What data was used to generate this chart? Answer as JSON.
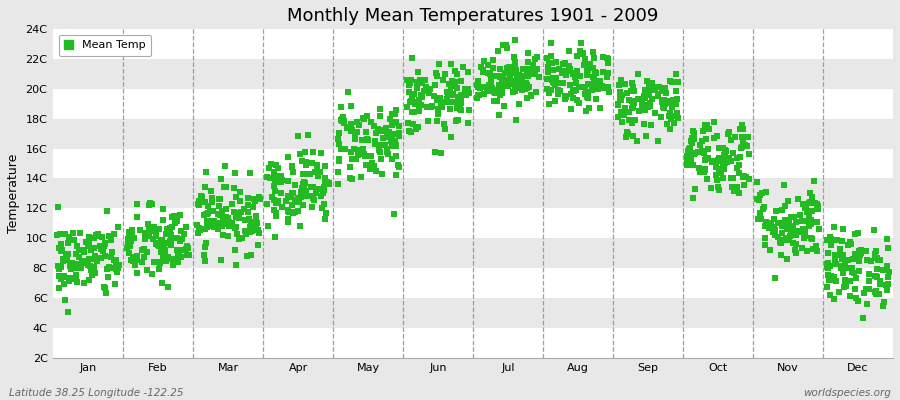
{
  "title": "Monthly Mean Temperatures 1901 - 2009",
  "ylabel": "Temperature",
  "xlabel_labels": [
    "Jan",
    "Feb",
    "Mar",
    "Apr",
    "May",
    "Jun",
    "Jul",
    "Aug",
    "Sep",
    "Oct",
    "Nov",
    "Dec"
  ],
  "ytick_labels": [
    "2C",
    "4C",
    "6C",
    "8C",
    "10C",
    "12C",
    "14C",
    "16C",
    "18C",
    "20C",
    "22C",
    "24C"
  ],
  "ytick_values": [
    2,
    4,
    6,
    8,
    10,
    12,
    14,
    16,
    18,
    20,
    22,
    24
  ],
  "ylim": [
    2,
    24
  ],
  "xlim": [
    0,
    12
  ],
  "legend_label": "Mean Temp",
  "marker_color": "#22bb22",
  "marker": "s",
  "marker_size": 4,
  "bg_color": "#e8e8e8",
  "hband_colors": [
    "#ffffff",
    "#e8e8e8"
  ],
  "dashed_color": "#888888",
  "footer_left": "Latitude 38.25 Longitude -122.25",
  "footer_right": "worldspecies.org",
  "monthly_mean": [
    8.5,
    9.5,
    11.5,
    13.5,
    16.5,
    19.2,
    20.8,
    20.5,
    19.0,
    15.5,
    11.0,
    8.0
  ],
  "monthly_std": [
    1.3,
    1.3,
    1.2,
    1.3,
    1.4,
    1.2,
    1.0,
    1.0,
    1.1,
    1.3,
    1.3,
    1.3
  ],
  "n_years": 109,
  "seed": 42
}
